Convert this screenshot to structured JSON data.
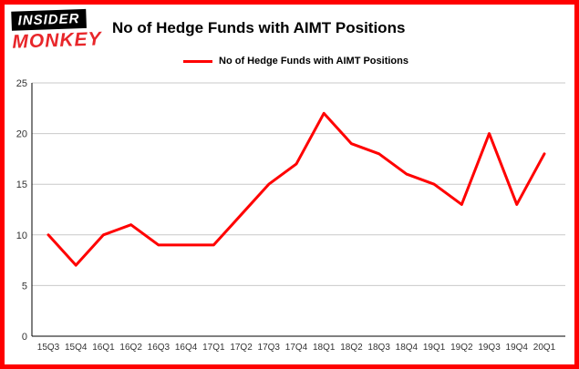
{
  "logo": {
    "line1": "INSIDER",
    "line2": "MONKEY"
  },
  "title": "No of Hedge Funds with AIMT Positions",
  "legend": {
    "label": "No of Hedge Funds with AIMT Positions"
  },
  "colors": {
    "line": "#ff0000",
    "border": "#fe0000",
    "grid": "#c9c9c9",
    "axis": "#000000",
    "tick_text": "#333333"
  },
  "chart_data": {
    "type": "line",
    "categories": [
      "15Q3",
      "15Q4",
      "16Q1",
      "16Q2",
      "16Q3",
      "16Q4",
      "17Q1",
      "17Q2",
      "17Q3",
      "17Q4",
      "18Q1",
      "18Q2",
      "18Q3",
      "18Q4",
      "19Q1",
      "19Q2",
      "19Q3",
      "19Q4",
      "20Q1"
    ],
    "values": [
      10,
      7,
      10,
      11,
      9,
      9,
      9,
      12,
      15,
      17,
      22,
      19,
      18,
      16,
      15,
      13,
      20,
      13,
      18
    ],
    "title": "No of Hedge Funds with AIMT Positions",
    "xlabel": "",
    "ylabel": "",
    "ylim": [
      0,
      25
    ],
    "yticks": [
      0,
      5,
      10,
      15,
      20,
      25
    ],
    "grid": true,
    "legend_position": "top-left",
    "series_name": "No of Hedge Funds with AIMT Positions"
  }
}
